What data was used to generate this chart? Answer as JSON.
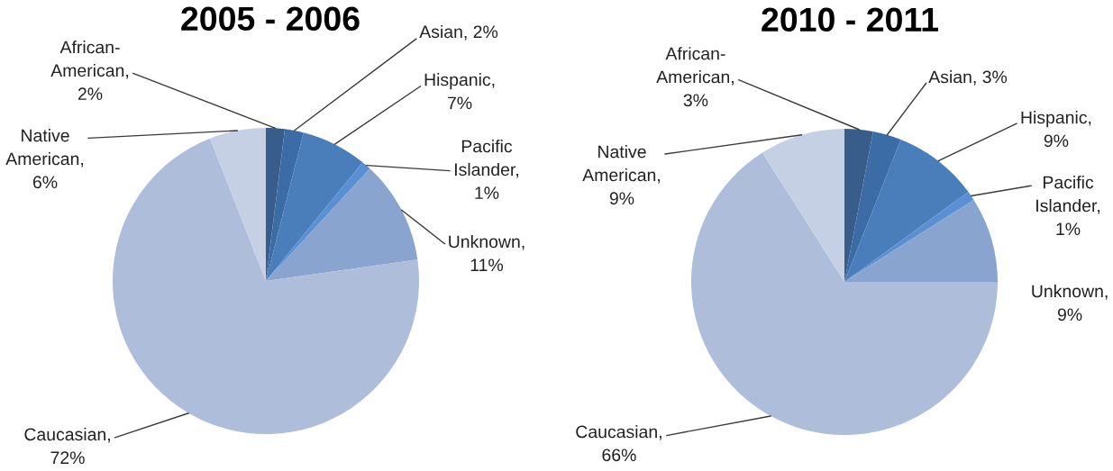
{
  "chart_data": [
    {
      "type": "pie",
      "title": "2005 - 2006",
      "categories": [
        null,
        null,
        null,
        null,
        null,
        null,
        null
      ],
      "values": [
        2,
        2,
        7,
        1,
        11,
        72,
        6
      ],
      "value_labels": [
        "African-American, 2%",
        "Asian, 2%",
        "Hispanic, 7%",
        "Pacific Islander, 1%",
        "Unknown, 11%",
        "Caucasian, 72%",
        "Native American, 6%"
      ],
      "colors": [
        "#385d8a",
        "#3c6ca6",
        "#4a7ebb",
        "#5b8fd3",
        "#88a4cf",
        "#adbdda",
        "#c6d0e4"
      ]
    },
    {
      "type": "pie",
      "title": "2010 - 2011",
      "categories": [
        null,
        null,
        null,
        null,
        null,
        null,
        null
      ],
      "values": [
        3,
        3,
        9,
        1,
        9,
        66,
        9
      ],
      "value_labels": [
        "African-American, 3%",
        "Asian, 3%",
        "Hispanic, 9%",
        "Pacific Islander, 1%",
        "Unknown, 9%",
        "Caucasian, 66%",
        "Native American, 9%"
      ],
      "colors": [
        "#385d8a",
        "#3c6ca6",
        "#4a7ebb",
        "#5b8fd3",
        "#88a4cf",
        "#adbdda",
        "#c6d0e4"
      ]
    }
  ]
}
